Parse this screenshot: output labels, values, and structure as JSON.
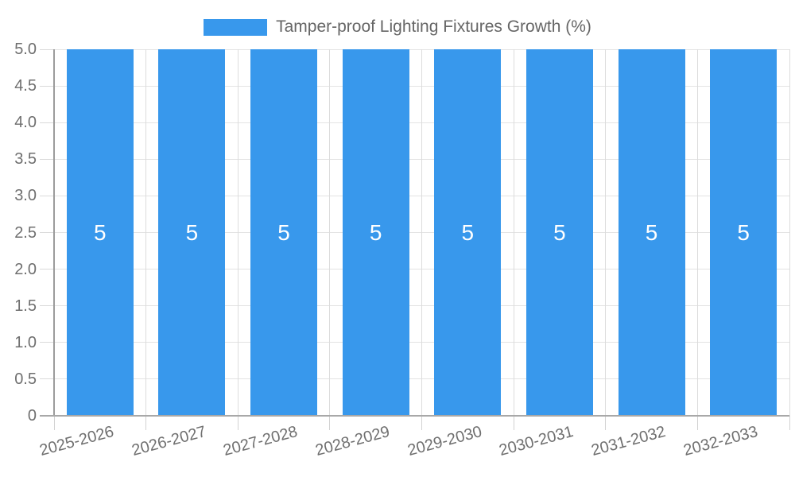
{
  "legend": {
    "label": "Tamper-proof Lighting Fixtures Growth (%)"
  },
  "colors": {
    "bar": "#3898EC",
    "bar_label": "#FFFFFF",
    "legend_text": "#666666",
    "tick_label": "#6F6F6F",
    "h_grid": "#E3E3E3",
    "v_grid": "#DCDCDC",
    "below_tick": "#D2D2D2",
    "left_tick": "#DADADA",
    "y_axis_line": "#9C9C9C",
    "x_axis_line": "#A8A8A8",
    "background": "#FFFFFF"
  },
  "y_axis": {
    "tick_labels": [
      "5.0",
      "4.5",
      "4.0",
      "3.5",
      "3.0",
      "2.5",
      "2.0",
      "1.5",
      "1.0",
      "0.5",
      "0"
    ]
  },
  "chart_data": {
    "type": "bar",
    "title": "Tamper-proof Lighting Fixtures Growth (%)",
    "categories": [
      "2025-2026",
      "2026-2027",
      "2027-2028",
      "2028-2029",
      "2029-2030",
      "2030-2031",
      "2031-2032",
      "2032-2033"
    ],
    "values": [
      5,
      5,
      5,
      5,
      5,
      5,
      5,
      5
    ],
    "bar_labels": [
      "5",
      "5",
      "5",
      "5",
      "5",
      "5",
      "5",
      "5"
    ],
    "xlabel": "",
    "ylabel": "",
    "ylim": [
      0,
      5
    ],
    "y_ticks": [
      0,
      0.5,
      1.0,
      1.5,
      2.0,
      2.5,
      3.0,
      3.5,
      4.0,
      4.5,
      5.0
    ],
    "grid": true,
    "legend_position": "top-center",
    "x_label_rotation_deg": -15
  }
}
